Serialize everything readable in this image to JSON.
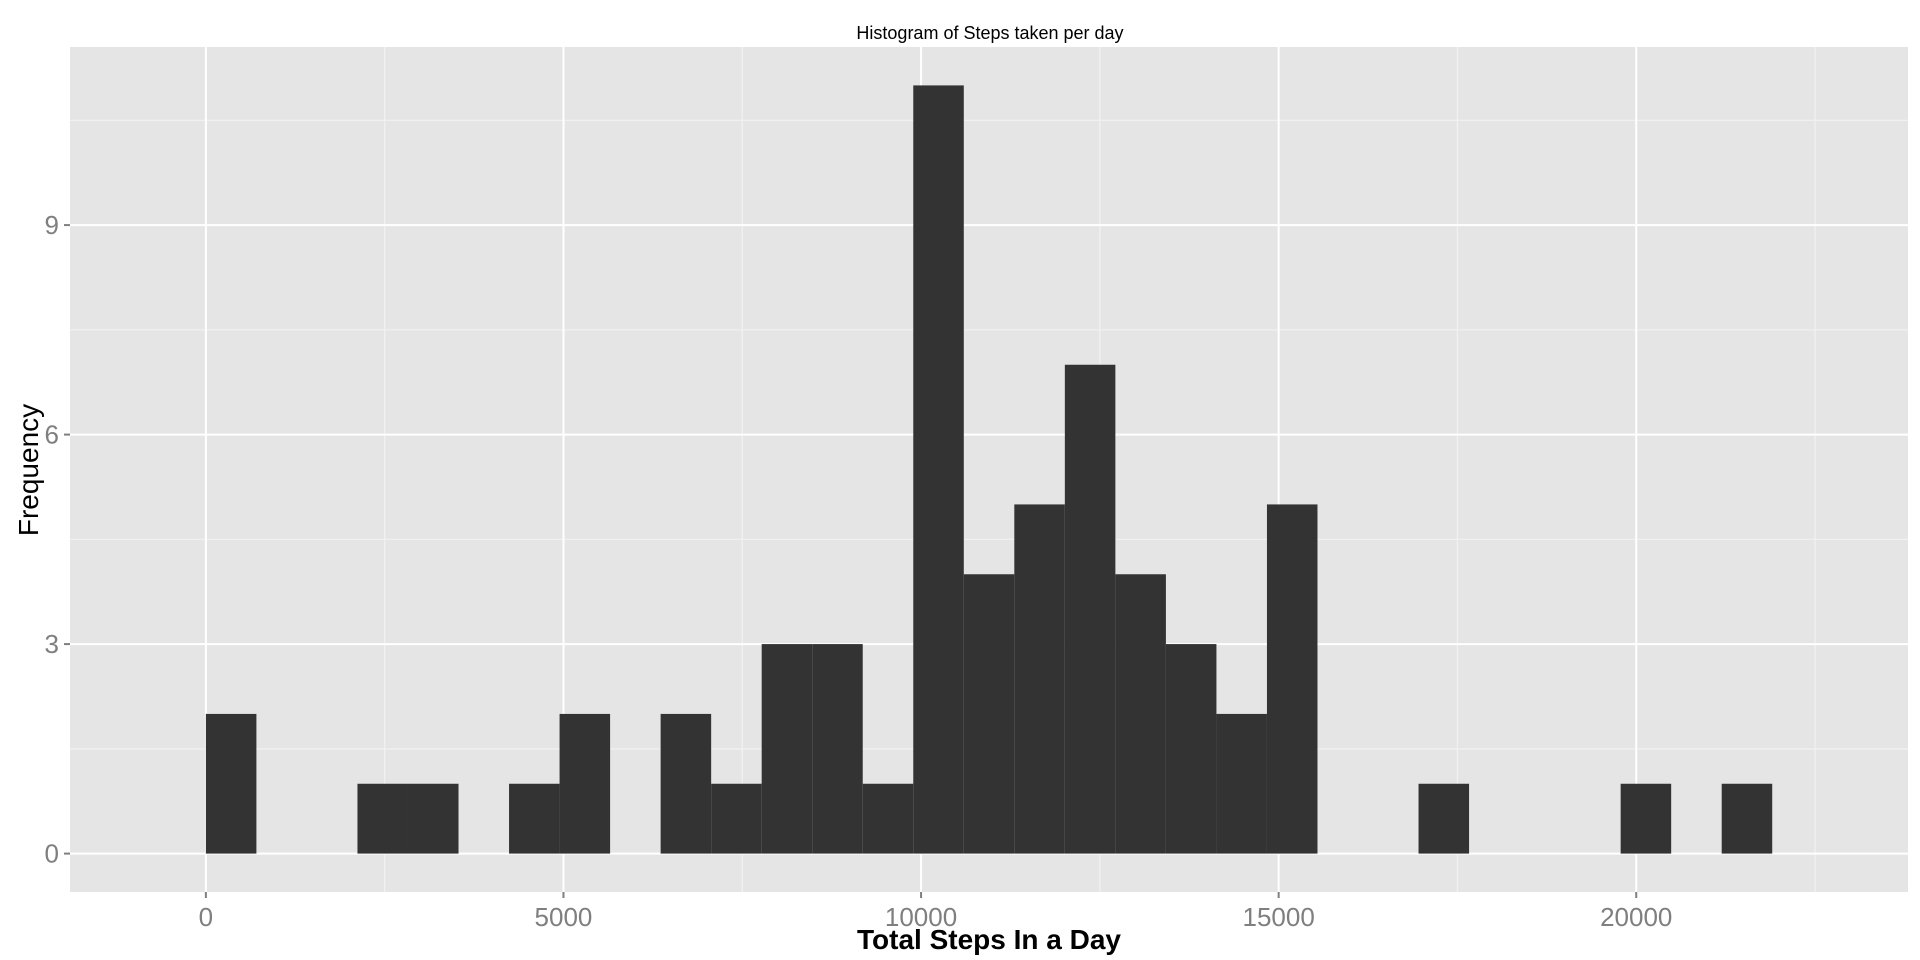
{
  "chart_data": {
    "type": "bar",
    "title": "Histogram of Steps taken per day",
    "xlabel": "Total Steps In a Day",
    "ylabel": "Frequency",
    "bin_width": 706.5,
    "bins": [
      {
        "start": 0,
        "end": 706.5,
        "count": 2
      },
      {
        "start": 706.5,
        "end": 1413,
        "count": 0
      },
      {
        "start": 1413,
        "end": 2119.5,
        "count": 0
      },
      {
        "start": 2119.5,
        "end": 2826,
        "count": 1
      },
      {
        "start": 2826,
        "end": 3532.5,
        "count": 1
      },
      {
        "start": 3532.5,
        "end": 4239,
        "count": 0
      },
      {
        "start": 4239,
        "end": 4945.5,
        "count": 1
      },
      {
        "start": 4945.5,
        "end": 5652,
        "count": 2
      },
      {
        "start": 5652,
        "end": 6358.5,
        "count": 0
      },
      {
        "start": 6358.5,
        "end": 7065,
        "count": 2
      },
      {
        "start": 7065,
        "end": 7771.5,
        "count": 1
      },
      {
        "start": 7771.5,
        "end": 8478,
        "count": 3
      },
      {
        "start": 8478,
        "end": 9184.5,
        "count": 3
      },
      {
        "start": 9184.5,
        "end": 9891,
        "count": 1
      },
      {
        "start": 9891,
        "end": 10597.5,
        "count": 11
      },
      {
        "start": 10597.5,
        "end": 11304,
        "count": 4
      },
      {
        "start": 11304,
        "end": 12010.5,
        "count": 5
      },
      {
        "start": 12010.5,
        "end": 12717,
        "count": 7
      },
      {
        "start": 12717,
        "end": 13423.5,
        "count": 4
      },
      {
        "start": 13423.5,
        "end": 14130,
        "count": 3
      },
      {
        "start": 14130,
        "end": 14836.5,
        "count": 2
      },
      {
        "start": 14836.5,
        "end": 15543,
        "count": 5
      },
      {
        "start": 15543,
        "end": 16249.5,
        "count": 0
      },
      {
        "start": 16249.5,
        "end": 16956,
        "count": 0
      },
      {
        "start": 16956,
        "end": 17662.5,
        "count": 1
      },
      {
        "start": 17662.5,
        "end": 18369,
        "count": 0
      },
      {
        "start": 18369,
        "end": 19075.5,
        "count": 0
      },
      {
        "start": 19075.5,
        "end": 19782,
        "count": 0
      },
      {
        "start": 19782,
        "end": 20488.5,
        "count": 1
      },
      {
        "start": 20488.5,
        "end": 21195,
        "count": 0
      },
      {
        "start": 21195,
        "end": 21901.5,
        "count": 1
      }
    ],
    "xlim": [
      -1900,
      23800
    ],
    "ylim": [
      -0.55,
      11.55
    ],
    "x_ticks": [
      0,
      5000,
      10000,
      15000,
      20000
    ],
    "x_tick_labels": [
      "0",
      "5000",
      "10000",
      "15000",
      "20000"
    ],
    "y_ticks": [
      0,
      3,
      6,
      9
    ],
    "y_tick_labels": [
      "0",
      "3",
      "6",
      "9"
    ],
    "grid": true,
    "legend": "none",
    "colors": {
      "bar": "#333333",
      "panel": "#e5e5e5",
      "grid_major": "#ffffff",
      "grid_minor": "#f2f2f2",
      "tick_text": "#7f7f7f"
    }
  }
}
